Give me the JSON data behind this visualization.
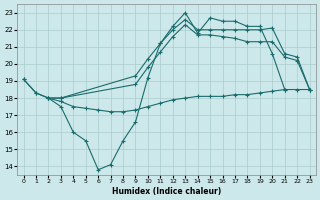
{
  "xlabel": "Humidex (Indice chaleur)",
  "xlim": [
    -0.5,
    23.5
  ],
  "ylim": [
    13.5,
    23.5
  ],
  "xticks": [
    0,
    1,
    2,
    3,
    4,
    5,
    6,
    7,
    8,
    9,
    10,
    11,
    12,
    13,
    14,
    15,
    16,
    17,
    18,
    19,
    20,
    21,
    22,
    23
  ],
  "yticks": [
    14,
    15,
    16,
    17,
    18,
    19,
    20,
    21,
    22,
    23
  ],
  "bg_color": "#cce8ea",
  "grid_color": "#aacccc",
  "line_color": "#1a6b6b",
  "line1_x": [
    0,
    1,
    2,
    3,
    4,
    5,
    6,
    7,
    8,
    9,
    10,
    11,
    12,
    13,
    14,
    15,
    16,
    17,
    18,
    19,
    20,
    21
  ],
  "line1_y": [
    19.1,
    18.3,
    18.0,
    17.5,
    16.0,
    15.5,
    13.8,
    14.1,
    15.5,
    16.6,
    19.2,
    21.2,
    22.2,
    23.0,
    21.8,
    22.7,
    22.5,
    22.5,
    22.2,
    22.2,
    20.6,
    18.5
  ],
  "line2_x": [
    0,
    1,
    2,
    3,
    4,
    5,
    6,
    7,
    8,
    9,
    10,
    11,
    12,
    13,
    14,
    15,
    16,
    17,
    18,
    19,
    20,
    21,
    22,
    23
  ],
  "line2_y": [
    19.1,
    18.3,
    18.0,
    17.8,
    17.5,
    17.4,
    17.3,
    17.2,
    17.2,
    17.3,
    17.5,
    17.7,
    17.9,
    18.0,
    18.1,
    18.1,
    18.1,
    18.2,
    18.2,
    18.3,
    18.4,
    18.5,
    18.5,
    18.5
  ],
  "line3_x": [
    2,
    3,
    9,
    10,
    11,
    12,
    13,
    14,
    15,
    16,
    17,
    18,
    19,
    20,
    21,
    22,
    23
  ],
  "line3_y": [
    18.0,
    18.0,
    19.3,
    20.3,
    21.2,
    22.0,
    22.6,
    22.0,
    22.0,
    22.0,
    22.0,
    22.0,
    22.0,
    22.1,
    20.6,
    20.4,
    18.5
  ],
  "line4_x": [
    2,
    3,
    9,
    10,
    11,
    12,
    13,
    14,
    15,
    16,
    17,
    18,
    19,
    20,
    21,
    22,
    23
  ],
  "line4_y": [
    18.0,
    18.0,
    18.8,
    19.8,
    20.7,
    21.6,
    22.3,
    21.7,
    21.7,
    21.6,
    21.5,
    21.3,
    21.3,
    21.3,
    20.4,
    20.2,
    18.5
  ]
}
